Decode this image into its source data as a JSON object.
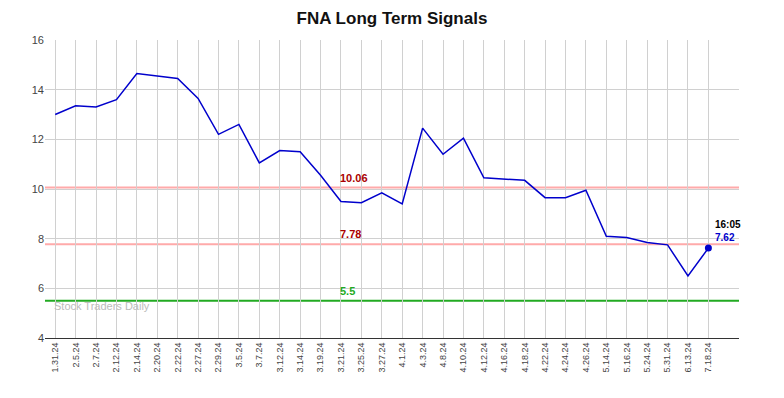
{
  "chart_data": {
    "type": "line",
    "title": "FNA Long Term Signals",
    "categories": [
      "1.31.24",
      "2.5.24",
      "2.7.24",
      "2.12.24",
      "2.14.24",
      "2.20.24",
      "2.22.24",
      "2.27.24",
      "2.29.24",
      "3.5.24",
      "3.7.24",
      "3.12.24",
      "3.14.24",
      "3.19.24",
      "3.21.24",
      "3.25.24",
      "3.27.24",
      "4.1.24",
      "4.3.24",
      "4.8.24",
      "4.10.24",
      "4.12.24",
      "4.16.24",
      "4.18.24",
      "4.22.24",
      "4.24.24",
      "4.26.24",
      "5.14.24",
      "5.16.24",
      "5.24.24",
      "5.31.24",
      "6.13.24",
      "7.18.24"
    ],
    "values": [
      13.0,
      13.35,
      13.3,
      13.6,
      14.65,
      14.55,
      14.45,
      13.65,
      12.2,
      12.6,
      11.05,
      11.55,
      11.5,
      10.55,
      9.5,
      9.45,
      9.85,
      9.4,
      12.45,
      11.4,
      12.05,
      10.45,
      10.4,
      10.35,
      9.65,
      9.65,
      9.95,
      8.1,
      8.05,
      7.85,
      7.75,
      6.5,
      7.62
    ],
    "color": "#0000cc",
    "ylim": [
      4,
      16
    ],
    "yticks": [
      4,
      6,
      8,
      10,
      12,
      14,
      16
    ],
    "grid": true,
    "grid_color": "#d0d0d0",
    "background_color": "#ffffff",
    "reference_lines": [
      {
        "value": 10.06,
        "label": "10.06",
        "color": "#ffaaaa",
        "label_color": "#aa0000"
      },
      {
        "value": 7.78,
        "label": "7.78",
        "color": "#ffaaaa",
        "label_color": "#aa0000"
      },
      {
        "value": 5.5,
        "label": "5.5",
        "color": "#22aa22",
        "label_color": "#22aa22"
      }
    ],
    "last_point": {
      "marker": "circle",
      "color": "#0000cc"
    },
    "annotations": [
      {
        "text": "16:05",
        "color": "#000000"
      },
      {
        "text": "7.62",
        "color": "#0000cc"
      }
    ],
    "watermark": {
      "text": "Stock Traders Daily",
      "color": "#bbbbbb"
    }
  }
}
